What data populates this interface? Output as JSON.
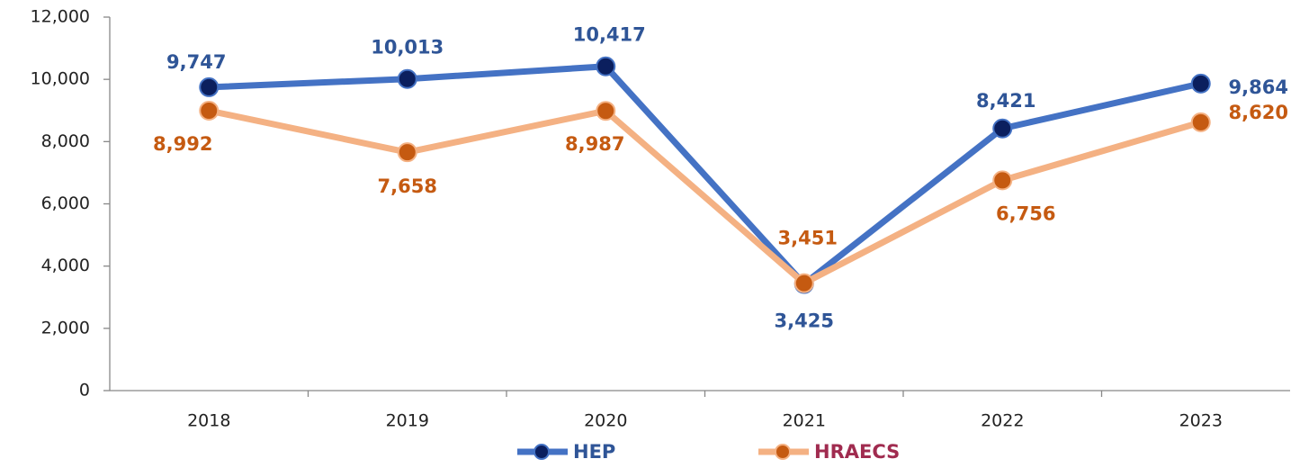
{
  "chart_data": {
    "type": "line",
    "categories": [
      "2018",
      "2019",
      "2020",
      "2021",
      "2022",
      "2023"
    ],
    "series": [
      {
        "name": "HEP",
        "color": "#4472c4",
        "marker_color": "#0b1f5e",
        "label_color": "#2f5597",
        "values": [
          9747,
          10013,
          10417,
          3425,
          8421,
          9864
        ],
        "value_labels": [
          "9,747",
          "10,013",
          "10,417",
          "3,425",
          "8,421",
          "9,864"
        ]
      },
      {
        "name": "HRAECS",
        "color": "#f4b183",
        "marker_color": "#c55a11",
        "label_color": "#c55a11",
        "legend_color": "#a02b4f",
        "values": [
          8992,
          7658,
          8987,
          3451,
          6756,
          8620
        ],
        "value_labels": [
          "8,992",
          "7,658",
          "8,987",
          "3,451",
          "6,756",
          "8,620"
        ]
      }
    ],
    "ylim": [
      0,
      12000
    ],
    "yticks": [
      {
        "value": 0,
        "label": "0"
      },
      {
        "value": 2000,
        "label": "2,000"
      },
      {
        "value": 4000,
        "label": "4,000"
      },
      {
        "value": 6000,
        "label": "6,000"
      },
      {
        "value": 8000,
        "label": "8,000"
      },
      {
        "value": 10000,
        "label": "10,000"
      },
      {
        "value": 12000,
        "label": "12,000"
      }
    ],
    "grid": false,
    "legend": "bottom"
  }
}
